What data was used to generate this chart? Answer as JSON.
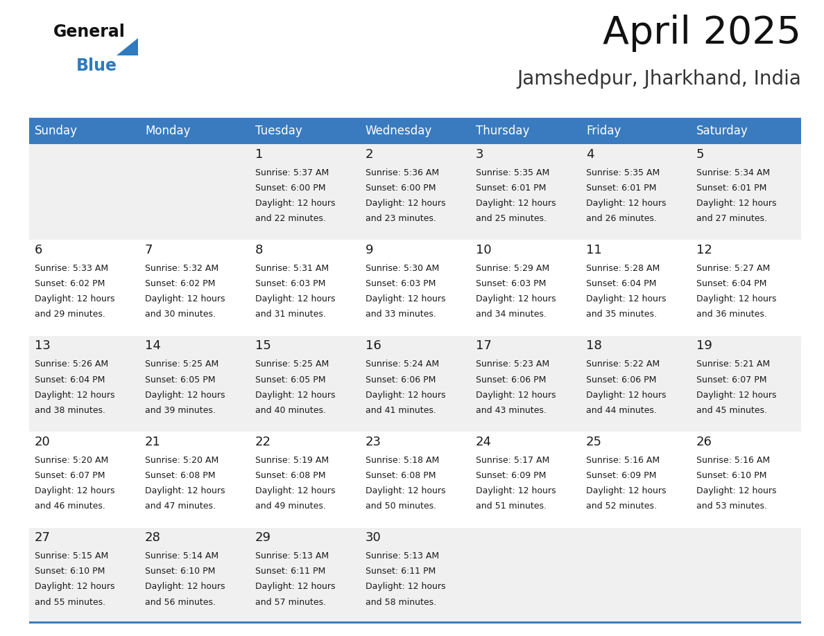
{
  "title": "April 2025",
  "subtitle": "Jamshedpur, Jharkhand, India",
  "header_bg": "#3a7bbf",
  "header_text": "#ffffff",
  "row_bg_odd": "#f0f0f0",
  "row_bg_even": "#ffffff",
  "separator_color": "#3a7bbf",
  "day_names": [
    "Sunday",
    "Monday",
    "Tuesday",
    "Wednesday",
    "Thursday",
    "Friday",
    "Saturday"
  ],
  "calendar": [
    [
      {
        "day": "",
        "sunrise": "",
        "sunset": "",
        "daylight_min": ""
      },
      {
        "day": "",
        "sunrise": "",
        "sunset": "",
        "daylight_min": ""
      },
      {
        "day": "1",
        "sunrise": "5:37 AM",
        "sunset": "6:00 PM",
        "daylight_min": "22"
      },
      {
        "day": "2",
        "sunrise": "5:36 AM",
        "sunset": "6:00 PM",
        "daylight_min": "23"
      },
      {
        "day": "3",
        "sunrise": "5:35 AM",
        "sunset": "6:01 PM",
        "daylight_min": "25"
      },
      {
        "day": "4",
        "sunrise": "5:35 AM",
        "sunset": "6:01 PM",
        "daylight_min": "26"
      },
      {
        "day": "5",
        "sunrise": "5:34 AM",
        "sunset": "6:01 PM",
        "daylight_min": "27"
      }
    ],
    [
      {
        "day": "6",
        "sunrise": "5:33 AM",
        "sunset": "6:02 PM",
        "daylight_min": "29"
      },
      {
        "day": "7",
        "sunrise": "5:32 AM",
        "sunset": "6:02 PM",
        "daylight_min": "30"
      },
      {
        "day": "8",
        "sunrise": "5:31 AM",
        "sunset": "6:03 PM",
        "daylight_min": "31"
      },
      {
        "day": "9",
        "sunrise": "5:30 AM",
        "sunset": "6:03 PM",
        "daylight_min": "33"
      },
      {
        "day": "10",
        "sunrise": "5:29 AM",
        "sunset": "6:03 PM",
        "daylight_min": "34"
      },
      {
        "day": "11",
        "sunrise": "5:28 AM",
        "sunset": "6:04 PM",
        "daylight_min": "35"
      },
      {
        "day": "12",
        "sunrise": "5:27 AM",
        "sunset": "6:04 PM",
        "daylight_min": "36"
      }
    ],
    [
      {
        "day": "13",
        "sunrise": "5:26 AM",
        "sunset": "6:04 PM",
        "daylight_min": "38"
      },
      {
        "day": "14",
        "sunrise": "5:25 AM",
        "sunset": "6:05 PM",
        "daylight_min": "39"
      },
      {
        "day": "15",
        "sunrise": "5:25 AM",
        "sunset": "6:05 PM",
        "daylight_min": "40"
      },
      {
        "day": "16",
        "sunrise": "5:24 AM",
        "sunset": "6:06 PM",
        "daylight_min": "41"
      },
      {
        "day": "17",
        "sunrise": "5:23 AM",
        "sunset": "6:06 PM",
        "daylight_min": "43"
      },
      {
        "day": "18",
        "sunrise": "5:22 AM",
        "sunset": "6:06 PM",
        "daylight_min": "44"
      },
      {
        "day": "19",
        "sunrise": "5:21 AM",
        "sunset": "6:07 PM",
        "daylight_min": "45"
      }
    ],
    [
      {
        "day": "20",
        "sunrise": "5:20 AM",
        "sunset": "6:07 PM",
        "daylight_min": "46"
      },
      {
        "day": "21",
        "sunrise": "5:20 AM",
        "sunset": "6:08 PM",
        "daylight_min": "47"
      },
      {
        "day": "22",
        "sunrise": "5:19 AM",
        "sunset": "6:08 PM",
        "daylight_min": "49"
      },
      {
        "day": "23",
        "sunrise": "5:18 AM",
        "sunset": "6:08 PM",
        "daylight_min": "50"
      },
      {
        "day": "24",
        "sunrise": "5:17 AM",
        "sunset": "6:09 PM",
        "daylight_min": "51"
      },
      {
        "day": "25",
        "sunrise": "5:16 AM",
        "sunset": "6:09 PM",
        "daylight_min": "52"
      },
      {
        "day": "26",
        "sunrise": "5:16 AM",
        "sunset": "6:10 PM",
        "daylight_min": "53"
      }
    ],
    [
      {
        "day": "27",
        "sunrise": "5:15 AM",
        "sunset": "6:10 PM",
        "daylight_min": "55"
      },
      {
        "day": "28",
        "sunrise": "5:14 AM",
        "sunset": "6:10 PM",
        "daylight_min": "56"
      },
      {
        "day": "29",
        "sunrise": "5:13 AM",
        "sunset": "6:11 PM",
        "daylight_min": "57"
      },
      {
        "day": "30",
        "sunrise": "5:13 AM",
        "sunset": "6:11 PM",
        "daylight_min": "58"
      },
      {
        "day": "",
        "sunrise": "",
        "sunset": "",
        "daylight_min": ""
      },
      {
        "day": "",
        "sunrise": "",
        "sunset": "",
        "daylight_min": ""
      },
      {
        "day": "",
        "sunrise": "",
        "sunset": "",
        "daylight_min": ""
      }
    ]
  ]
}
